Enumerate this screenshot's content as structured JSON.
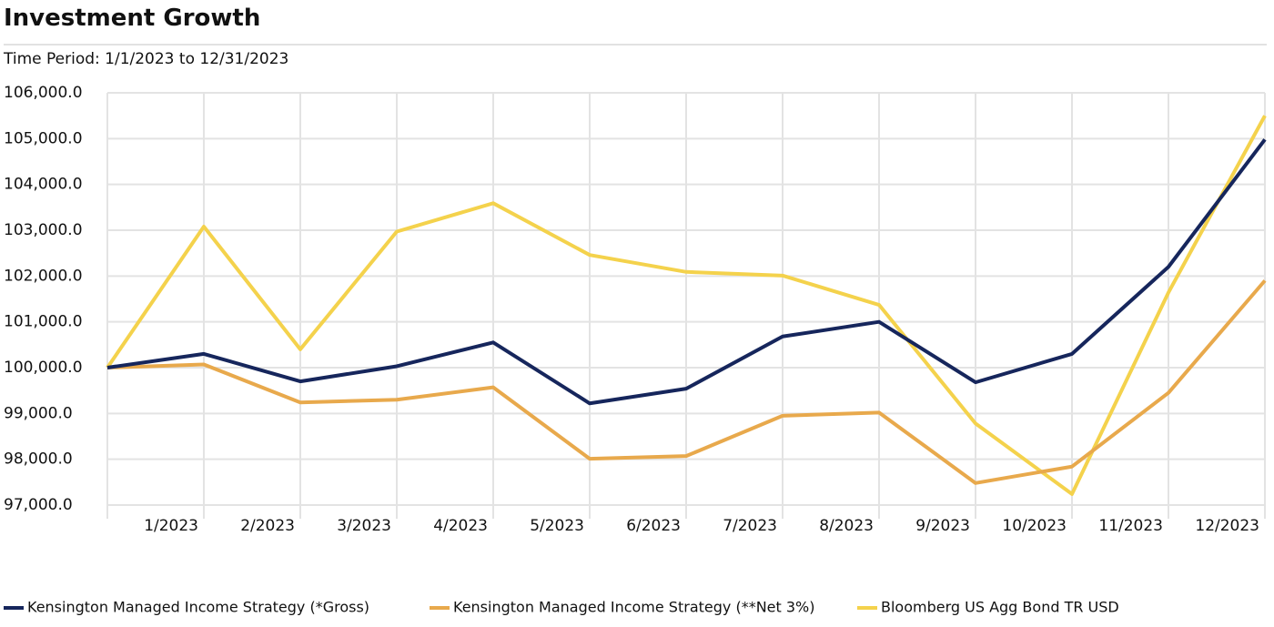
{
  "chart_data": {
    "type": "line",
    "title": "Investment Growth",
    "subtitle": "Time Period: 1/1/2023 to 12/31/2023",
    "categories": [
      null,
      "1/2023",
      "2/2023",
      "3/2023",
      "4/2023",
      "5/2023",
      "6/2023",
      "7/2023",
      "8/2023",
      "9/2023",
      "10/2023",
      "11/2023",
      "12/2023"
    ],
    "series": [
      {
        "name": "Kensington Managed Income Strategy (*Gross)",
        "color": "#16265c",
        "values": [
          100000,
          100300,
          99700,
          100030,
          100550,
          99220,
          99540,
          100680,
          101000,
          99680,
          100300,
          102200,
          104980
        ]
      },
      {
        "name": "Kensington Managed Income Strategy (**Net 3%)",
        "color": "#e8a94c",
        "values": [
          100000,
          100070,
          99240,
          99300,
          99570,
          98010,
          98070,
          98950,
          99020,
          97480,
          97840,
          99450,
          101900
        ]
      },
      {
        "name": "Bloomberg US Agg Bond TR USD",
        "color": "#f4d24c",
        "values": [
          100000,
          103080,
          100400,
          102970,
          103590,
          102460,
          102090,
          102010,
          101370,
          98780,
          97240,
          101640,
          105500
        ]
      }
    ],
    "ylim": [
      97000,
      106000
    ],
    "yticks": [
      {
        "value": 97000,
        "label": "97,000.0"
      },
      {
        "value": 98000,
        "label": "98,000.0"
      },
      {
        "value": 99000,
        "label": "99,000.0"
      },
      {
        "value": 100000,
        "label": "100,000.0"
      },
      {
        "value": 101000,
        "label": "101,000.0"
      },
      {
        "value": 102000,
        "label": "102,000.0"
      },
      {
        "value": 103000,
        "label": "103,000.0"
      },
      {
        "value": 104000,
        "label": "104,000.0"
      },
      {
        "value": 105000,
        "label": "105,000.0"
      },
      {
        "value": 106000,
        "label": "106,000.0"
      }
    ],
    "grid": true,
    "legend": "bottom"
  }
}
